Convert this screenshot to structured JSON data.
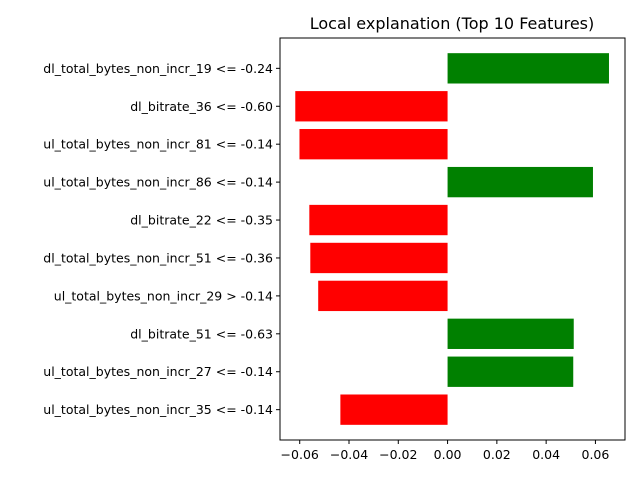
{
  "chart_data": {
    "type": "bar",
    "orientation": "horizontal",
    "title": "Local explanation (Top 10 Features)",
    "xlabel": "",
    "ylabel": "",
    "xlim": [
      -0.068,
      0.072
    ],
    "xticks": [
      -0.06,
      -0.04,
      -0.02,
      0.0,
      0.02,
      0.04,
      0.06
    ],
    "xtick_labels": [
      "−0.06",
      "−0.04",
      "−0.02",
      "0.00",
      "0.02",
      "0.04",
      "0.06"
    ],
    "grid": false,
    "categories": [
      "dl_total_bytes_non_incr_19 <= -0.24",
      "dl_bitrate_36 <= -0.60",
      "ul_total_bytes_non_incr_81 <= -0.14",
      "ul_total_bytes_non_incr_86 <= -0.14",
      "dl_bitrate_22 <= -0.35",
      "dl_total_bytes_non_incr_51 <= -0.36",
      "ul_total_bytes_non_incr_29 > -0.14",
      "dl_bitrate_51 <= -0.63",
      "ul_total_bytes_non_incr_27 <= -0.14",
      "ul_total_bytes_non_incr_35 <= -0.14"
    ],
    "values": [
      0.0655,
      -0.0618,
      -0.0601,
      0.059,
      -0.0561,
      -0.0557,
      -0.0525,
      0.0512,
      0.051,
      -0.0435
    ],
    "colors": {
      "positive": "#008000",
      "negative": "#ff0000"
    }
  }
}
